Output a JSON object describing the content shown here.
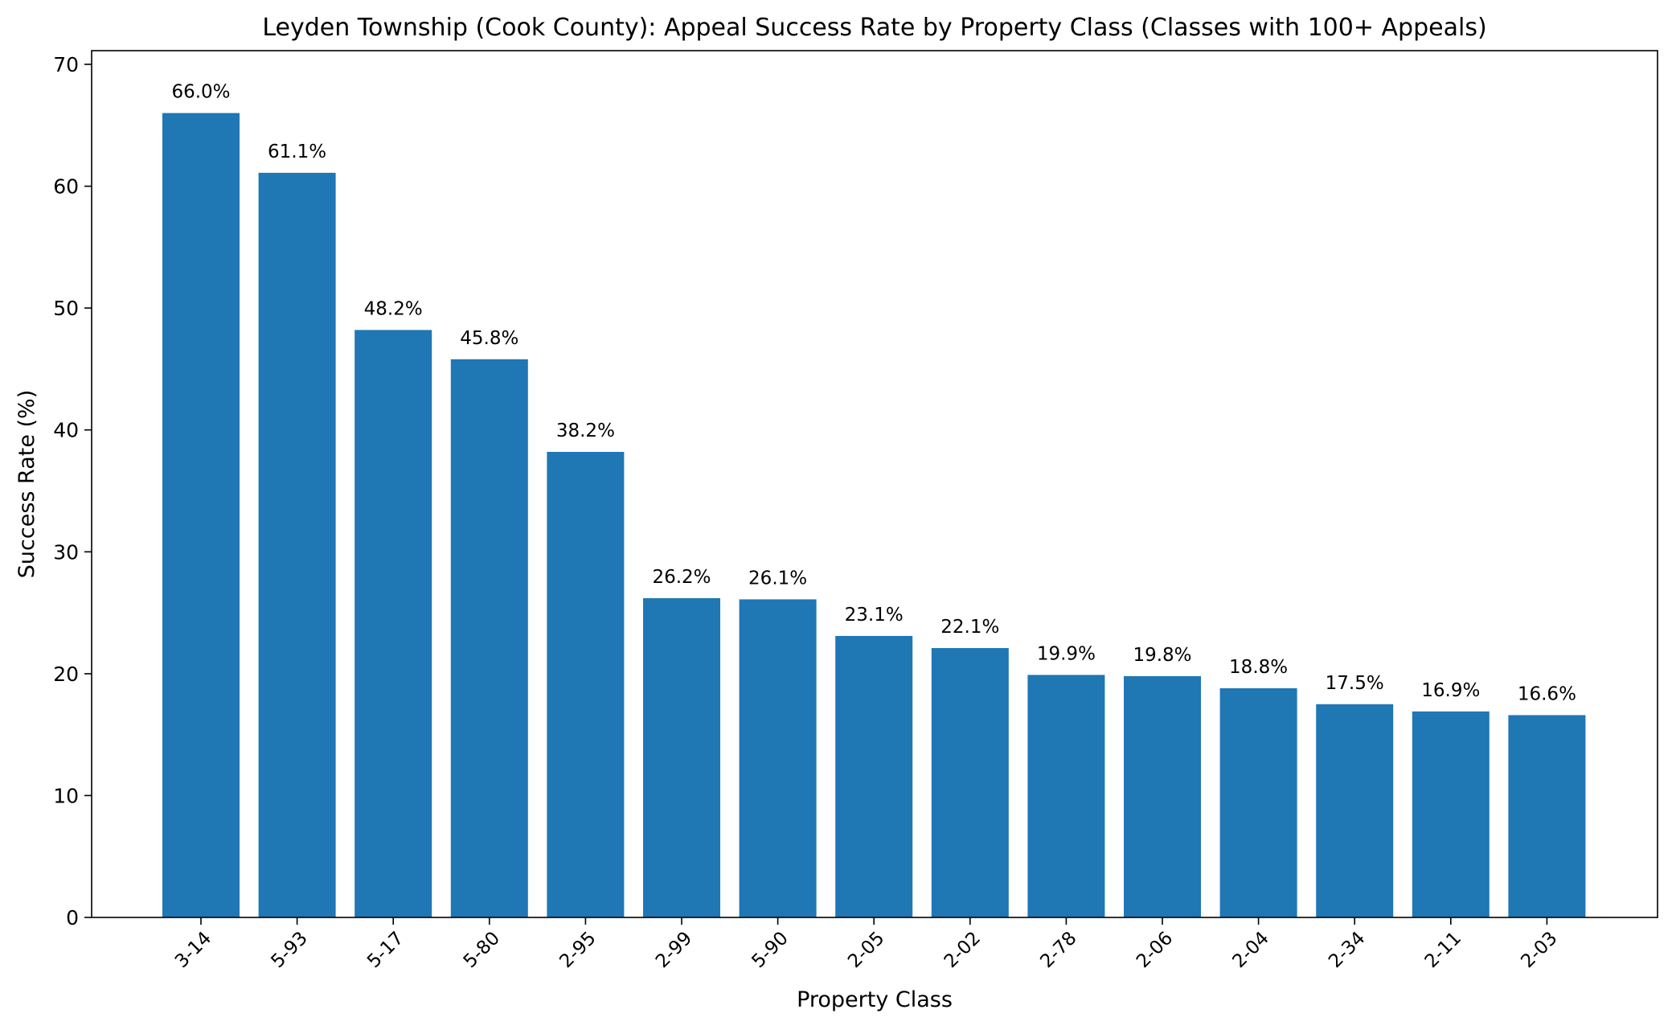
{
  "chart_data": {
    "type": "bar",
    "title": "Leyden Township (Cook County): Appeal Success Rate by Property Class (Classes with 100+ Appeals)",
    "xlabel": "Property Class",
    "ylabel": "Success Rate (%)",
    "categories": [
      "3-14",
      "5-93",
      "5-17",
      "5-80",
      "2-95",
      "2-99",
      "5-90",
      "2-05",
      "2-02",
      "2-78",
      "2-06",
      "2-04",
      "2-34",
      "2-11",
      "2-03"
    ],
    "values": [
      66.0,
      61.1,
      48.2,
      45.8,
      38.2,
      26.2,
      26.1,
      23.1,
      22.1,
      19.9,
      19.8,
      18.8,
      17.5,
      16.9,
      16.6
    ],
    "value_labels": [
      "66.0%",
      "61.1%",
      "48.2%",
      "45.8%",
      "38.2%",
      "26.2%",
      "26.1%",
      "23.1%",
      "22.1%",
      "19.9%",
      "19.8%",
      "18.8%",
      "17.5%",
      "16.9%",
      "16.6%"
    ],
    "ylim": [
      0,
      70
    ],
    "yticks": [
      "0",
      "10",
      "20",
      "30",
      "40",
      "50",
      "60",
      "70"
    ],
    "grid": false,
    "legend": "none",
    "bar_color": "#1f77b4"
  }
}
